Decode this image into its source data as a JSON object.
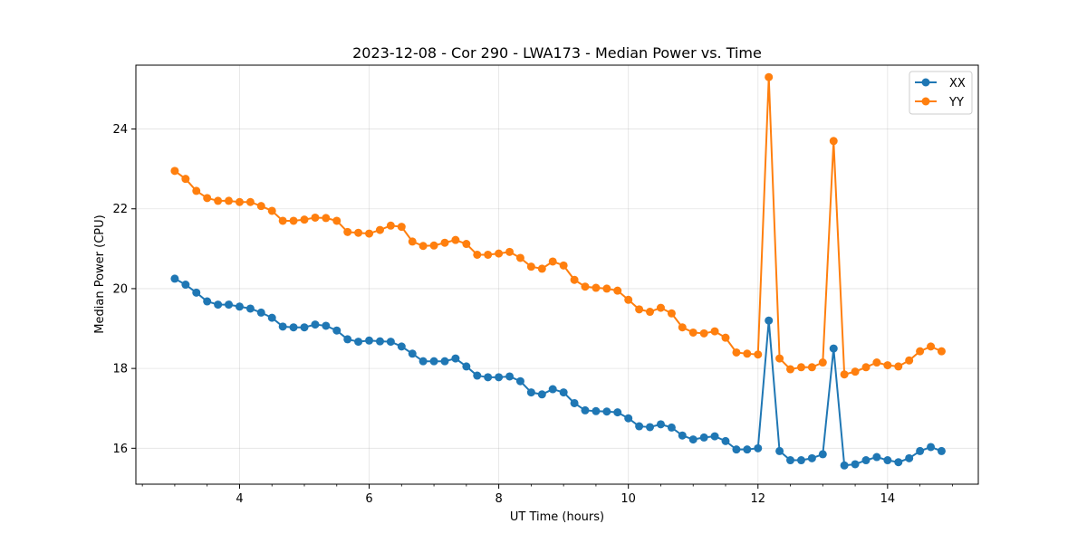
{
  "chart_data": {
    "type": "line",
    "title": "2023-12-08 - Cor 290 - LWA173 - Median Power vs. Time",
    "xlabel": "UT Time (hours)",
    "ylabel": "Median Power (CPU)",
    "xlim": [
      2.4,
      15.4
    ],
    "ylim": [
      15.1,
      25.6
    ],
    "xticks": [
      4,
      6,
      8,
      10,
      12,
      14
    ],
    "xtick_labels": [
      "4",
      "6",
      "8",
      "10",
      "12",
      "14"
    ],
    "yticks": [
      16,
      18,
      20,
      22,
      24
    ],
    "ytick_labels": [
      "16",
      "18",
      "20",
      "22",
      "24"
    ],
    "grid": true,
    "legend_position": "top-right",
    "x": [
      3.0,
      3.167,
      3.333,
      3.5,
      3.667,
      3.833,
      4.0,
      4.167,
      4.333,
      4.5,
      4.667,
      4.833,
      5.0,
      5.167,
      5.333,
      5.5,
      5.667,
      5.833,
      6.0,
      6.167,
      6.333,
      6.5,
      6.667,
      6.833,
      7.0,
      7.167,
      7.333,
      7.5,
      7.667,
      7.833,
      8.0,
      8.167,
      8.333,
      8.5,
      8.667,
      8.833,
      9.0,
      9.167,
      9.333,
      9.5,
      9.667,
      9.833,
      10.0,
      10.167,
      10.333,
      10.5,
      10.667,
      10.833,
      11.0,
      11.167,
      11.333,
      11.5,
      11.667,
      11.833,
      12.0,
      12.167,
      12.333,
      12.5,
      12.667,
      12.833,
      13.0,
      13.167,
      13.333,
      13.5,
      13.667,
      13.833,
      14.0,
      14.167,
      14.333,
      14.5,
      14.667,
      14.833
    ],
    "series": [
      {
        "name": "XX",
        "color": "#1f77b4",
        "values": [
          20.25,
          20.1,
          19.9,
          19.68,
          19.6,
          19.6,
          19.55,
          19.5,
          19.4,
          19.27,
          19.05,
          19.03,
          19.03,
          19.1,
          19.07,
          18.95,
          18.73,
          18.67,
          18.7,
          18.68,
          18.67,
          18.55,
          18.37,
          18.18,
          18.18,
          18.18,
          18.25,
          18.05,
          17.82,
          17.78,
          17.78,
          17.8,
          17.68,
          17.4,
          17.35,
          17.48,
          17.4,
          17.13,
          16.95,
          16.93,
          16.92,
          16.9,
          16.75,
          16.55,
          16.53,
          16.6,
          16.52,
          16.32,
          16.22,
          16.27,
          16.3,
          16.18,
          15.97,
          15.97,
          16.0,
          19.2,
          15.93,
          15.7,
          15.7,
          15.75,
          15.85,
          18.5,
          15.57,
          15.6,
          15.7,
          15.78,
          15.7,
          15.65,
          15.75,
          15.93,
          16.03,
          15.93
        ]
      },
      {
        "name": "YY",
        "color": "#ff7f0e",
        "values": [
          22.95,
          22.75,
          22.45,
          22.27,
          22.2,
          22.2,
          22.17,
          22.17,
          22.07,
          21.95,
          21.7,
          21.7,
          21.73,
          21.78,
          21.77,
          21.7,
          21.42,
          21.4,
          21.38,
          21.47,
          21.58,
          21.55,
          21.18,
          21.07,
          21.08,
          21.15,
          21.22,
          21.12,
          20.85,
          20.85,
          20.88,
          20.92,
          20.77,
          20.55,
          20.5,
          20.68,
          20.58,
          20.22,
          20.05,
          20.02,
          20.0,
          19.95,
          19.72,
          19.48,
          19.42,
          19.52,
          19.38,
          19.03,
          18.9,
          18.88,
          18.93,
          18.77,
          18.4,
          18.37,
          18.35,
          25.3,
          18.25,
          17.98,
          18.03,
          18.03,
          18.15,
          23.7,
          17.85,
          17.92,
          18.03,
          18.15,
          18.08,
          18.05,
          18.2,
          18.43,
          18.55,
          18.43
        ]
      }
    ]
  }
}
